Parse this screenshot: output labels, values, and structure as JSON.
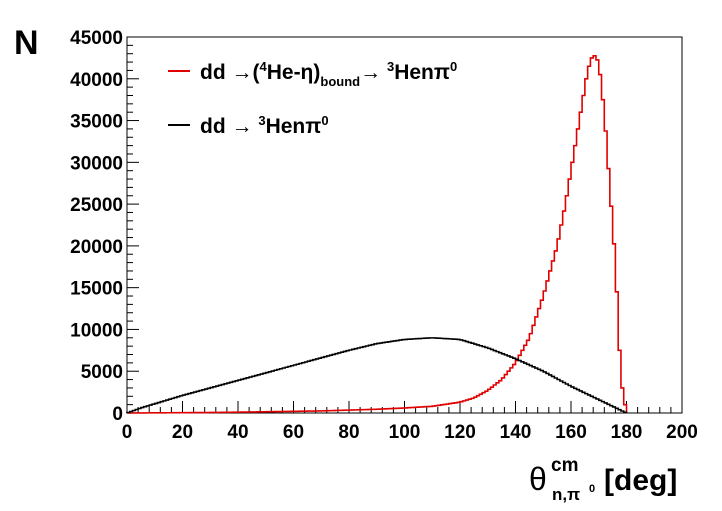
{
  "chart_data": {
    "type": "line",
    "title": "",
    "ylabel": "N",
    "xlabel": {
      "symbol": "θ",
      "superscript": "cm",
      "subscript_main": "n,π",
      "subscript_sup": "0",
      "unit": "[deg]"
    },
    "xlim": [
      0,
      200
    ],
    "ylim": [
      0,
      45000
    ],
    "xticks": [
      "0",
      "20",
      "40",
      "60",
      "80",
      "100",
      "120",
      "140",
      "160",
      "180",
      "200"
    ],
    "yticks": [
      "0",
      "5000",
      "10000",
      "15000",
      "20000",
      "25000",
      "30000",
      "35000",
      "40000",
      "45000"
    ],
    "grid": false,
    "legend_position": "top-left",
    "series": [
      {
        "name": "dd →(⁴He-η)bound→ ³Henπ⁰",
        "legend_parts": {
          "a": "dd →(",
          "b": "4",
          "c": "He-η)",
          "d": "bound",
          "e": "→ ",
          "f": "3",
          "g": "Henπ",
          "h": "0"
        },
        "color": "#e00000",
        "x": [
          0,
          10,
          20,
          30,
          40,
          50,
          60,
          70,
          80,
          90,
          100,
          110,
          120,
          125,
          130,
          135,
          140,
          145,
          150,
          155,
          158,
          160,
          162,
          164,
          166,
          168,
          170,
          172,
          174,
          176,
          178,
          180
        ],
        "y": [
          0,
          20,
          40,
          60,
          100,
          150,
          200,
          250,
          350,
          450,
          600,
          800,
          1300,
          1800,
          2700,
          4000,
          6000,
          9000,
          14000,
          20000,
          25000,
          29000,
          33000,
          37000,
          41000,
          43000,
          42000,
          36000,
          27000,
          18000,
          4000,
          0
        ]
      },
      {
        "name": "dd → ³Henπ⁰",
        "legend_parts": {
          "a": "dd → ",
          "b": "3",
          "c": "Henπ",
          "d": "0"
        },
        "color": "#000000",
        "x": [
          0,
          5,
          10,
          20,
          30,
          40,
          50,
          60,
          70,
          80,
          90,
          100,
          110,
          120,
          130,
          140,
          150,
          160,
          170,
          175,
          180
        ],
        "y": [
          0,
          600,
          1100,
          2100,
          3000,
          3900,
          4800,
          5700,
          6600,
          7500,
          8300,
          8800,
          9000,
          8800,
          7800,
          6500,
          5000,
          3200,
          1600,
          800,
          0
        ]
      }
    ]
  }
}
